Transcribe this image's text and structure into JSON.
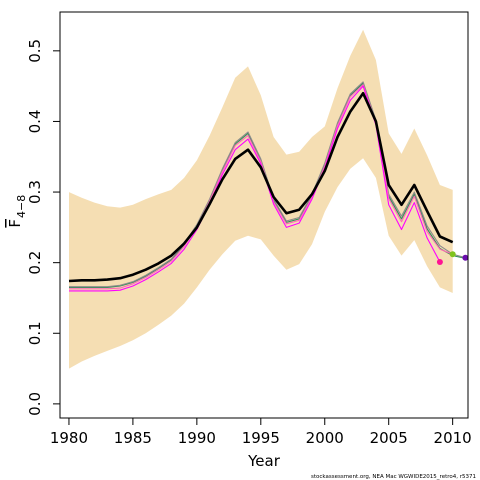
{
  "chart_data": {
    "type": "line",
    "xlabel": "Year",
    "ylabel_main": "F",
    "ylabel_sub": "4−8",
    "credit": "stockassessment.org, NEA Mac WGWIDE2015_retro4, r5371",
    "xlim": [
      1979.3,
      2011.2
    ],
    "ylim": [
      -0.02,
      0.555
    ],
    "x_ticks": [
      1980,
      1985,
      1990,
      1995,
      2000,
      2005,
      2010
    ],
    "y_ticks": [
      0.0,
      0.1,
      0.2,
      0.3,
      0.4,
      0.5
    ],
    "y_tick_labels": [
      "0.0",
      "0.1",
      "0.2",
      "0.3",
      "0.4",
      "0.5"
    ],
    "colors": {
      "band": "#f5deb3",
      "main": "#000000",
      "retro": [
        "#ff00ff",
        "#ff69b4",
        "#8b8b8b",
        "#2e8b57"
      ],
      "points": [
        "#ff1493",
        "#7fc31c",
        "#6a0dad"
      ]
    },
    "confidence_band": {
      "x": [
        1980,
        1981,
        1982,
        1983,
        1984,
        1985,
        1986,
        1987,
        1988,
        1989,
        1990,
        1991,
        1992,
        1993,
        1994,
        1995,
        1996,
        1997,
        1998,
        1999,
        2000,
        2001,
        2002,
        2003,
        2004,
        2005,
        2006,
        2007,
        2008,
        2009,
        2010
      ],
      "upper": [
        0.3,
        0.292,
        0.285,
        0.28,
        0.278,
        0.282,
        0.29,
        0.297,
        0.303,
        0.32,
        0.345,
        0.38,
        0.42,
        0.462,
        0.478,
        0.437,
        0.378,
        0.353,
        0.357,
        0.378,
        0.393,
        0.447,
        0.493,
        0.53,
        0.487,
        0.383,
        0.354,
        0.39,
        0.352,
        0.31,
        0.303
      ],
      "lower": [
        0.05,
        0.06,
        0.068,
        0.075,
        0.082,
        0.09,
        0.1,
        0.112,
        0.125,
        0.142,
        0.165,
        0.19,
        0.212,
        0.231,
        0.238,
        0.233,
        0.21,
        0.19,
        0.198,
        0.226,
        0.272,
        0.307,
        0.333,
        0.348,
        0.32,
        0.238,
        0.21,
        0.232,
        0.195,
        0.165,
        0.157
      ]
    },
    "series": [
      {
        "x": [
          1980,
          1981,
          1982,
          1983,
          1984,
          1985,
          1986,
          1987,
          1988,
          1989,
          1990,
          1991,
          1992,
          1993,
          1994,
          1995,
          1996,
          1997,
          1998,
          1999,
          2000,
          2001,
          2002,
          2003,
          2004,
          2005,
          2006,
          2007,
          2008,
          2009,
          2010
        ],
        "y": [
          0.174,
          0.175,
          0.175,
          0.176,
          0.178,
          0.183,
          0.19,
          0.199,
          0.21,
          0.227,
          0.25,
          0.283,
          0.318,
          0.347,
          0.36,
          0.335,
          0.293,
          0.27,
          0.275,
          0.297,
          0.33,
          0.378,
          0.414,
          0.44,
          0.4,
          0.31,
          0.282,
          0.31,
          0.273,
          0.237,
          0.229
        ],
        "width": 2.6
      },
      {
        "x": [
          1980,
          1981,
          1982,
          1983,
          1984,
          1985,
          1986,
          1987,
          1988,
          1989,
          1990,
          1991,
          1992,
          1993,
          1994,
          1995,
          1996,
          1997,
          1998,
          1999,
          2000,
          2001,
          2002,
          2003,
          2004,
          2005,
          2006,
          2007,
          2008,
          2009
        ],
        "y": [
          0.16,
          0.16,
          0.16,
          0.16,
          0.161,
          0.167,
          0.176,
          0.187,
          0.199,
          0.219,
          0.247,
          0.283,
          0.325,
          0.36,
          0.375,
          0.34,
          0.283,
          0.25,
          0.256,
          0.29,
          0.334,
          0.39,
          0.43,
          0.45,
          0.395,
          0.282,
          0.247,
          0.285,
          0.235,
          0.201
        ],
        "width": 1.1,
        "end_point": true
      },
      {
        "x": [
          1980,
          1981,
          1982,
          1983,
          1984,
          1985,
          1986,
          1987,
          1988,
          1989,
          1990,
          1991,
          1992,
          1993,
          1994,
          1995,
          1996,
          1997,
          1998,
          1999,
          2000,
          2001,
          2002,
          2003,
          2004,
          2005,
          2006,
          2007,
          2008,
          2009,
          2010
        ],
        "y": [
          0.163,
          0.163,
          0.163,
          0.163,
          0.164,
          0.17,
          0.179,
          0.19,
          0.202,
          0.223,
          0.251,
          0.287,
          0.329,
          0.366,
          0.38,
          0.343,
          0.286,
          0.255,
          0.26,
          0.293,
          0.337,
          0.394,
          0.435,
          0.452,
          0.398,
          0.291,
          0.258,
          0.294,
          0.244,
          0.219,
          0.212
        ],
        "width": 1.1,
        "end_point": true
      },
      {
        "x": [
          1980,
          1981,
          1982,
          1983,
          1984,
          1985,
          1986,
          1987,
          1988,
          1989,
          1990,
          1991,
          1992,
          1993,
          1994,
          1995,
          1996,
          1997,
          1998,
          1999,
          2000,
          2001,
          2002,
          2003,
          2004,
          2005,
          2006,
          2007,
          2008,
          2009,
          2010,
          2011
        ],
        "y": [
          0.166,
          0.166,
          0.166,
          0.166,
          0.168,
          0.173,
          0.182,
          0.193,
          0.205,
          0.227,
          0.254,
          0.29,
          0.333,
          0.37,
          0.385,
          0.347,
          0.29,
          0.259,
          0.264,
          0.297,
          0.341,
          0.398,
          0.439,
          0.456,
          0.402,
          0.297,
          0.266,
          0.3,
          0.252,
          0.224,
          0.212,
          0.207
        ],
        "width": 1.1,
        "end_point": true
      },
      {
        "x": [
          1980,
          1981,
          1982,
          1983,
          1984,
          1985,
          1986,
          1987,
          1988,
          1989,
          1990,
          1991,
          1992,
          1993,
          1994,
          1995,
          1996,
          1997,
          1998,
          1999,
          2000,
          2001,
          2002,
          2003,
          2004,
          2005,
          2006,
          2007,
          2008,
          2009,
          2010,
          2011
        ],
        "y": [
          0.165,
          0.165,
          0.165,
          0.165,
          0.167,
          0.172,
          0.181,
          0.192,
          0.204,
          0.225,
          0.252,
          0.288,
          0.331,
          0.368,
          0.383,
          0.345,
          0.288,
          0.257,
          0.262,
          0.295,
          0.339,
          0.396,
          0.437,
          0.454,
          0.4,
          0.294,
          0.262,
          0.297,
          0.248,
          0.22,
          0.21,
          0.206
        ],
        "width": 1.1,
        "end_point": false
      }
    ],
    "end_points": [
      {
        "x": 2009,
        "y": 0.201
      },
      {
        "x": 2010,
        "y": 0.212
      },
      {
        "x": 2011,
        "y": 0.207
      }
    ]
  }
}
